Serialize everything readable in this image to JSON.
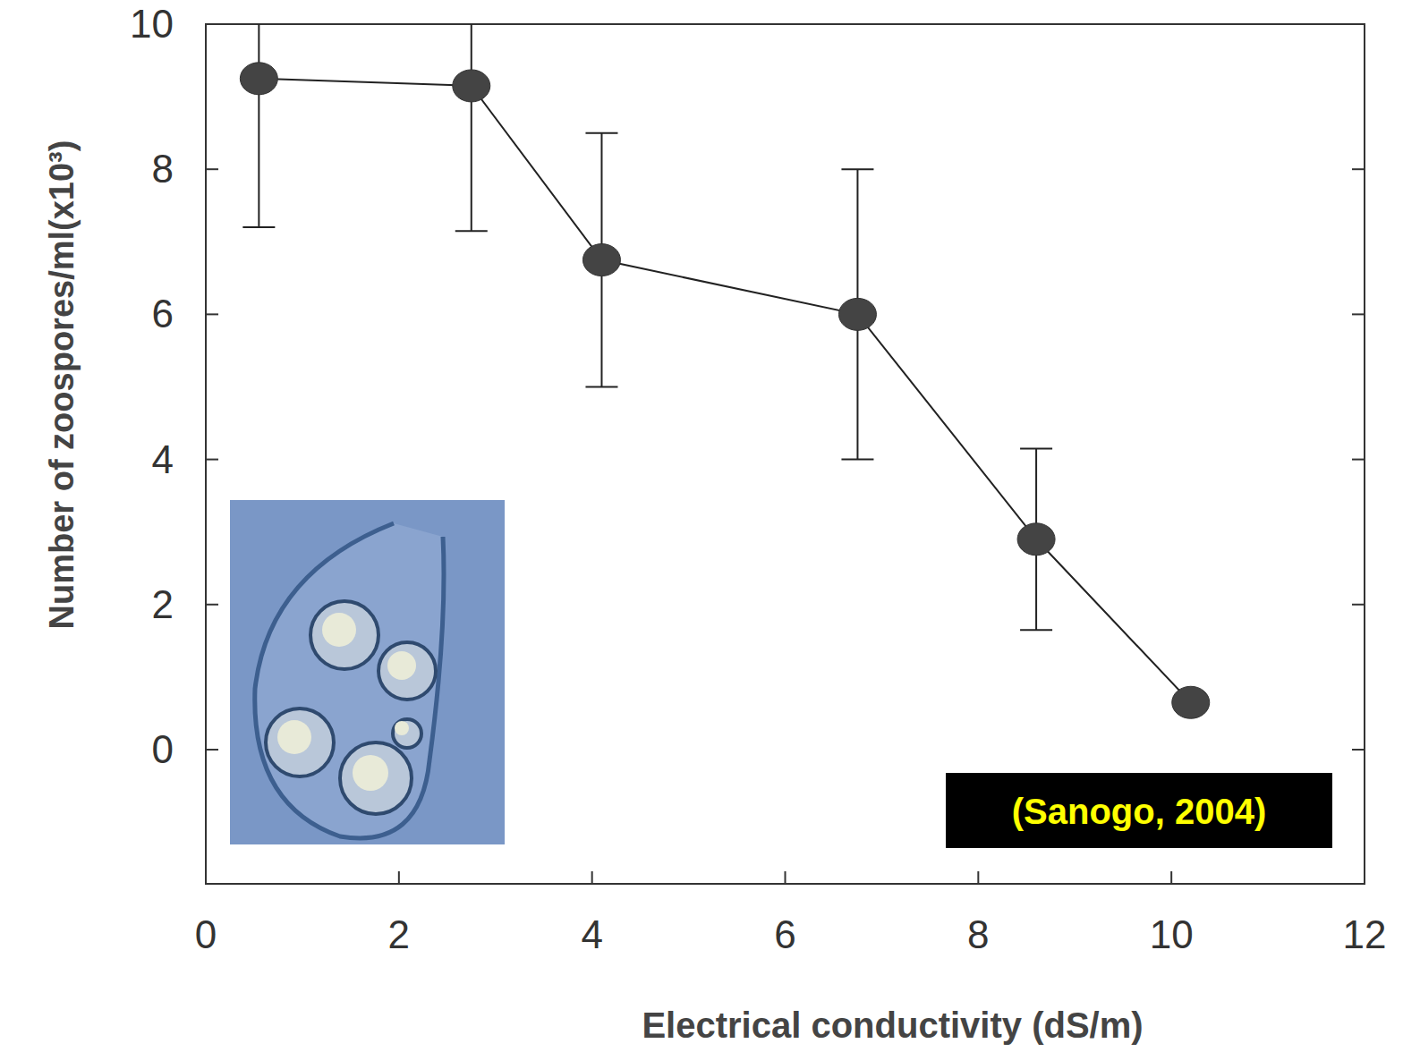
{
  "chart_data": {
    "type": "line",
    "x_label": "Electrical conductivity (dS/m)",
    "y_label": "Number of zoospores/ml(x10³)",
    "annotations": [
      "(Sanogo, 2004)"
    ],
    "x": [
      0.55,
      2.75,
      4.1,
      6.75,
      8.6,
      10.2
    ],
    "values": [
      9.25,
      9.15,
      6.75,
      6.0,
      2.9,
      0.65
    ],
    "errors": [
      2.05,
      2.0,
      1.75,
      2.0,
      1.25,
      0.1
    ],
    "xlim": [
      0,
      12
    ],
    "xticks": [
      0,
      2,
      4,
      6,
      8,
      10,
      12
    ],
    "ylim": [
      -1.85,
      10
    ],
    "yticks": [
      0,
      2,
      4,
      6,
      8,
      10
    ],
    "color": "#444444",
    "marker": "circle",
    "line_style": "solid",
    "grid": false
  }
}
